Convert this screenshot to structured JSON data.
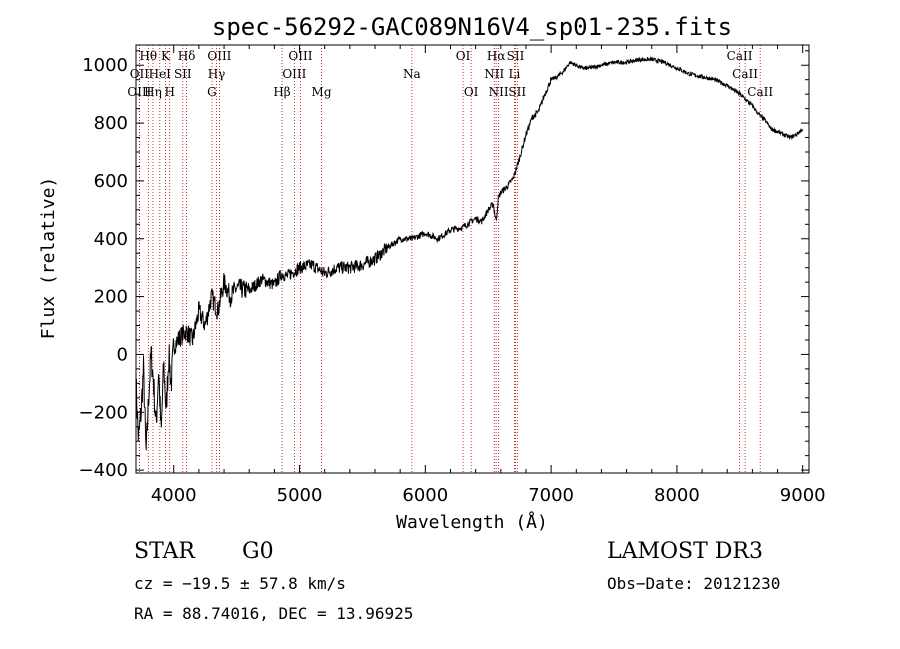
{
  "chart_data": {
    "type": "line",
    "title": "spec-56292-GAC089N16V4_sp01-235.fits",
    "xlabel": "Wavelength (Å)",
    "ylabel": "Flux (relative)",
    "xlim": [
      3700,
      9050
    ],
    "ylim": [
      -410,
      1070
    ],
    "xticks": [
      4000,
      5000,
      6000,
      7000,
      8000,
      9000
    ],
    "yticks": [
      -400,
      -200,
      0,
      200,
      400,
      600,
      800,
      1000
    ],
    "xtick_labels": [
      "4000",
      "5000",
      "6000",
      "7000",
      "8000",
      "9000"
    ],
    "ytick_labels": [
      "−400",
      "−200",
      "0",
      "200",
      "400",
      "600",
      "800",
      "1000"
    ],
    "series": [
      {
        "name": "flux",
        "x": [
          3700,
          3720,
          3740,
          3760,
          3780,
          3800,
          3820,
          3840,
          3860,
          3880,
          3900,
          3920,
          3940,
          3960,
          3980,
          4000,
          4050,
          4100,
          4150,
          4200,
          4250,
          4300,
          4350,
          4400,
          4450,
          4500,
          4600,
          4700,
          4800,
          4860,
          4900,
          5000,
          5100,
          5200,
          5300,
          5400,
          5500,
          5600,
          5700,
          5800,
          5900,
          6000,
          6100,
          6200,
          6300,
          6400,
          6450,
          6500,
          6540,
          6563,
          6580,
          6600,
          6650,
          6700,
          6750,
          6800,
          6850,
          6900,
          6950,
          7000,
          7050,
          7100,
          7150,
          7200,
          7250,
          7300,
          7400,
          7500,
          7600,
          7700,
          7800,
          7900,
          8000,
          8100,
          8200,
          8300,
          8400,
          8500,
          8550,
          8600,
          8650,
          8700,
          8750,
          8800,
          8850,
          8900,
          8950,
          9000
        ],
        "y": [
          -100,
          -300,
          -200,
          -50,
          -350,
          -150,
          0,
          -100,
          -250,
          -50,
          -280,
          -30,
          -200,
          0,
          -100,
          30,
          60,
          80,
          50,
          150,
          100,
          200,
          150,
          250,
          200,
          230,
          220,
          260,
          240,
          280,
          270,
          300,
          310,
          280,
          300,
          300,
          310,
          330,
          370,
          400,
          400,
          420,
          400,
          430,
          440,
          470,
          460,
          500,
          520,
          460,
          540,
          560,
          580,
          610,
          680,
          760,
          820,
          840,
          900,
          950,
          960,
          980,
          1010,
          1000,
          990,
          990,
          1000,
          1010,
          1010,
          1020,
          1020,
          1010,
          990,
          970,
          960,
          950,
          930,
          900,
          880,
          860,
          830,
          810,
          780,
          770,
          760,
          750,
          760,
          780
        ]
      }
    ],
    "line_markers": [
      {
        "label": "Hθ",
        "wl": 3798,
        "row": 0
      },
      {
        "label": "K",
        "wl": 3934,
        "row": 0
      },
      {
        "label": "Hδ",
        "wl": 4102,
        "row": 0
      },
      {
        "label": "OIII",
        "wl": 4363,
        "row": 0
      },
      {
        "label": "OIII",
        "wl": 5007,
        "row": 0
      },
      {
        "label": "OI",
        "wl": 6300,
        "row": 0
      },
      {
        "label": "Hα",
        "wl": 6563,
        "row": 0
      },
      {
        "label": "SII",
        "wl": 6717,
        "row": 0
      },
      {
        "label": "CaII",
        "wl": 8498,
        "row": 0
      },
      {
        "label": "OII",
        "wl": 3727,
        "row": 1
      },
      {
        "label": "HeI",
        "wl": 3889,
        "row": 1
      },
      {
        "label": "SII",
        "wl": 4072,
        "row": 1
      },
      {
        "label": "Hγ",
        "wl": 4340,
        "row": 1
      },
      {
        "label": "OIII",
        "wl": 4959,
        "row": 1
      },
      {
        "label": "Na",
        "wl": 5893,
        "row": 1
      },
      {
        "label": "NII",
        "wl": 6548,
        "row": 1
      },
      {
        "label": "Li",
        "wl": 6708,
        "row": 1
      },
      {
        "label": "CaII",
        "wl": 8542,
        "row": 1
      },
      {
        "label": "OIII",
        "wl": 3727,
        "row": 2
      },
      {
        "label": "Hη",
        "wl": 3835,
        "row": 2
      },
      {
        "label": "H",
        "wl": 3968,
        "row": 2
      },
      {
        "label": "G",
        "wl": 4304,
        "row": 2
      },
      {
        "label": "Hβ",
        "wl": 4861,
        "row": 2
      },
      {
        "label": "Mg",
        "wl": 5175,
        "row": 2
      },
      {
        "label": "OI",
        "wl": 6364,
        "row": 2
      },
      {
        "label": "NII",
        "wl": 6583,
        "row": 2
      },
      {
        "label": "SII",
        "wl": 6731,
        "row": 2
      },
      {
        "label": "CaII",
        "wl": 8662,
        "row": 2
      }
    ],
    "marker_color": "#c00000",
    "line_color": "#000000"
  },
  "info": {
    "classification": "STAR",
    "subclass": "G0",
    "survey": "LAMOST DR3",
    "cz": "cz = −19.5 ± 57.8 km/s",
    "obs_date": "Obs−Date: 20121230",
    "radec": "RA =  88.74016, DEC =  13.96925"
  }
}
